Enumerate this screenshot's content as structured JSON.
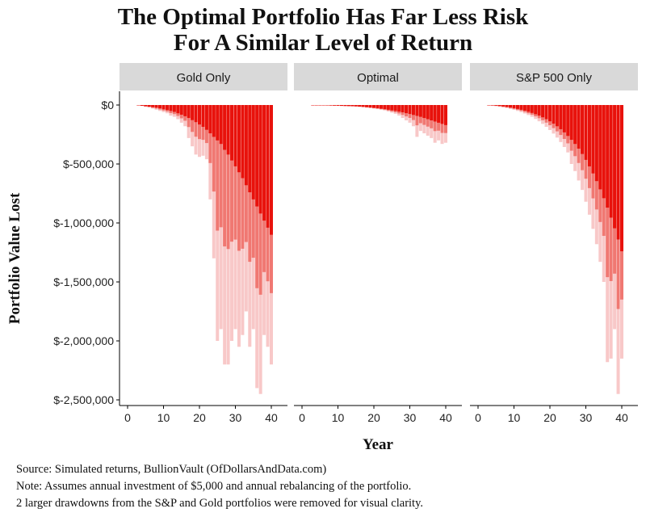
{
  "header": {
    "title_line1": "The Optimal Portfolio Has Far Less Risk",
    "title_line2": "For A Similar Level of Return"
  },
  "colors": {
    "strip_bg": "#d9d9d9",
    "bar_dark": "#e8120c",
    "bar_mid": "#f07872",
    "bar_light": "#f8c8c8",
    "axis": "#000000"
  },
  "footer": {
    "source": "Source:  Simulated returns, BullionVault (OfDollarsAndData.com)",
    "note": "Note:  Assumes annual investment of $5,000 and annual rebalancing of the portfolio.",
    "note2": "2 larger drawdowns from the S&P and Gold portfolios were removed for visual clarity."
  },
  "chart_data": {
    "type": "bar",
    "title": "The Optimal Portfolio Has Far Less Risk For A Similar Level of Return",
    "xlabel": "Year",
    "ylabel": "Portfolio Value Lost",
    "xlim": [
      0,
      41
    ],
    "ylim": [
      -2500000,
      0
    ],
    "x_ticks": [
      0,
      10,
      20,
      30,
      40
    ],
    "x_tick_labels": [
      "0",
      "10",
      "20",
      "30",
      "40"
    ],
    "y_ticks": [
      0,
      -500000,
      -1000000,
      -1500000,
      -2000000,
      -2500000
    ],
    "y_tick_labels": [
      "$0",
      "$-500,000",
      "$-1,000,000",
      "$-1,500,000",
      "$-2,000,000",
      "$-2,500,000"
    ],
    "x": [
      3,
      4,
      5,
      6,
      7,
      8,
      9,
      10,
      11,
      12,
      13,
      14,
      15,
      16,
      17,
      18,
      19,
      20,
      21,
      22,
      23,
      24,
      25,
      26,
      27,
      28,
      29,
      30,
      31,
      32,
      33,
      34,
      35,
      36,
      37,
      38,
      39,
      40
    ],
    "series": [
      {
        "name": "Gold Only",
        "typical": [
          -2000,
          -6000,
          -10000,
          -14000,
          -18000,
          -22000,
          -28000,
          -36000,
          -42000,
          -50000,
          -58000,
          -70000,
          -82000,
          -95000,
          -110000,
          -128000,
          -145000,
          -165000,
          -185000,
          -210000,
          -240000,
          -270000,
          -300000,
          -330000,
          -380000,
          -420000,
          -470000,
          -520000,
          -570000,
          -620000,
          -680000,
          -740000,
          -800000,
          -860000,
          -920000,
          -980000,
          -1040000,
          -1100000
        ],
        "tail": [
          -2000,
          -8000,
          -15000,
          -20000,
          -30000,
          -40000,
          -50000,
          -60000,
          -70000,
          -90000,
          -100000,
          -120000,
          -150000,
          -180000,
          -280000,
          -350000,
          -420000,
          -440000,
          -430000,
          -460000,
          -800000,
          -1300000,
          -2000000,
          -1900000,
          -2200000,
          -2200000,
          -2000000,
          -1900000,
          -2050000,
          -1950000,
          -1750000,
          -2050000,
          -1900000,
          -2400000,
          -2450000,
          -1950000,
          -2050000,
          -2200000
        ]
      },
      {
        "name": "Optimal",
        "typical": [
          -500,
          -1000,
          -1500,
          -2000,
          -3000,
          -4000,
          -5000,
          -6000,
          -7000,
          -8000,
          -9000,
          -10000,
          -11000,
          -13000,
          -15000,
          -18000,
          -21000,
          -24000,
          -27000,
          -31000,
          -35000,
          -40000,
          -45000,
          -50000,
          -56000,
          -62000,
          -69000,
          -76000,
          -84000,
          -92000,
          -100000,
          -110000,
          -120000,
          -130000,
          -140000,
          -150000,
          -160000,
          -170000
        ],
        "tail": [
          -500,
          -1000,
          -1500,
          -2500,
          -4000,
          -5000,
          -6000,
          -7000,
          -8000,
          -9000,
          -10000,
          -11000,
          -13000,
          -16000,
          -19000,
          -22000,
          -26000,
          -30000,
          -35000,
          -40000,
          -46000,
          -55000,
          -65000,
          -75000,
          -90000,
          -110000,
          -130000,
          -150000,
          -180000,
          -270000,
          -220000,
          -240000,
          -260000,
          -280000,
          -320000,
          -300000,
          -330000,
          -320000
        ]
      },
      {
        "name": "S&P 500 Only",
        "typical": [
          -1000,
          -3000,
          -5000,
          -8000,
          -12000,
          -16000,
          -21000,
          -27000,
          -33000,
          -40000,
          -48000,
          -57000,
          -67000,
          -78000,
          -90000,
          -104000,
          -120000,
          -138000,
          -158000,
          -180000,
          -205000,
          -232000,
          -262000,
          -295000,
          -330000,
          -370000,
          -415000,
          -465000,
          -520000,
          -580000,
          -645000,
          -715000,
          -790000,
          -870000,
          -955000,
          -1045000,
          -1140000,
          -1240000
        ],
        "tail": [
          -2000,
          -6000,
          -10000,
          -15000,
          -20000,
          -26000,
          -33000,
          -41000,
          -50000,
          -60000,
          -72000,
          -85000,
          -100000,
          -118000,
          -138000,
          -160000,
          -185000,
          -212000,
          -242000,
          -276000,
          -314000,
          -356000,
          -402000,
          -500000,
          -560000,
          -640000,
          -720000,
          -820000,
          -930000,
          -1050000,
          -1180000,
          -1330000,
          -1500000,
          -2180000,
          -2150000,
          -1900000,
          -2450000,
          -2150000
        ]
      }
    ],
    "legend": "none",
    "grid": false
  }
}
